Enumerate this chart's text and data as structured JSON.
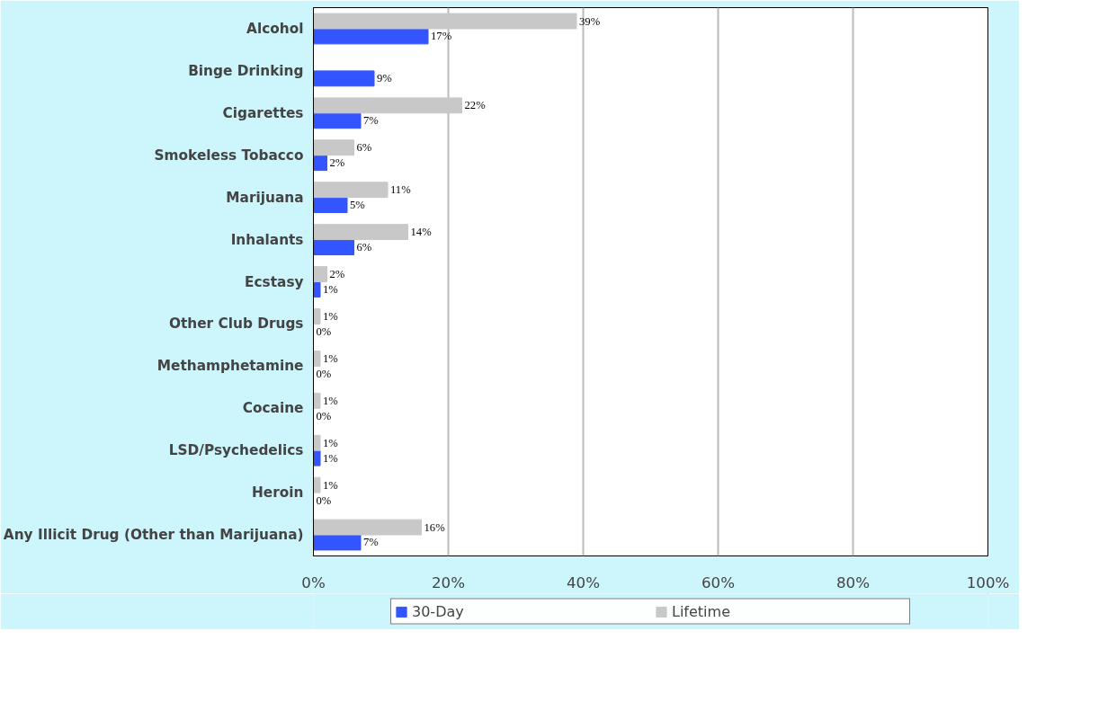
{
  "chart_data": {
    "type": "bar",
    "orientation": "horizontal",
    "categories": [
      "Alcohol",
      "Binge Drinking",
      "Cigarettes",
      "Smokeless Tobacco",
      "Marijuana",
      "Inhalants",
      "Ecstasy",
      "Other Club Drugs",
      "Methamphetamine",
      "Cocaine",
      "LSD/Psychedelics",
      "Heroin",
      "Any Illicit Drug (Other than Marijuana)"
    ],
    "series": [
      {
        "name": "30-Day",
        "color": "#3355ff",
        "values": [
          17,
          9,
          7,
          2,
          5,
          6,
          1,
          0,
          0,
          0,
          1,
          0,
          7
        ],
        "value_labels": [
          "17%",
          "9%",
          "7%",
          "2%",
          "5%",
          "6%",
          "1%",
          "0%",
          "0%",
          "0%",
          "1%",
          "0%",
          "7%"
        ]
      },
      {
        "name": "Lifetime",
        "color": "#c8c8c8",
        "values": [
          39,
          null,
          22,
          6,
          11,
          14,
          2,
          1,
          1,
          1,
          1,
          1,
          16
        ],
        "value_labels": [
          "39%",
          null,
          "22%",
          "6%",
          "11%",
          "14%",
          "2%",
          "1%",
          "1%",
          "1%",
          "1%",
          "1%",
          "16%"
        ]
      }
    ],
    "xlim": [
      0,
      100
    ],
    "xticks": [
      {
        "value": 0,
        "label": "0%"
      },
      {
        "value": 20,
        "label": "20%"
      },
      {
        "value": 40,
        "label": "40%"
      },
      {
        "value": 60,
        "label": "60%"
      },
      {
        "value": 80,
        "label": "80%"
      },
      {
        "value": 100,
        "label": "100%"
      }
    ],
    "grid": "x",
    "legend": "bottom"
  }
}
